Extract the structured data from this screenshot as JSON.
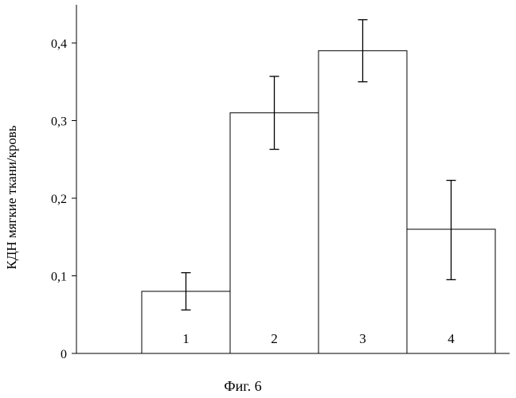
{
  "chart_data": {
    "type": "bar",
    "categories": [
      "1",
      "2",
      "3",
      "4"
    ],
    "values": [
      0.08,
      0.31,
      0.39,
      0.16
    ],
    "errors": [
      {
        "low": 0.056,
        "high": 0.104
      },
      {
        "low": 0.263,
        "high": 0.357
      },
      {
        "low": 0.35,
        "high": 0.43
      },
      {
        "low": 0.095,
        "high": 0.223
      }
    ],
    "ylabel": "КДН мягкие ткани/кровь",
    "ylim": [
      0,
      0.4
    ],
    "yticks": [
      0,
      0.1,
      0.2,
      0.3,
      0.4
    ],
    "ytick_labels": [
      "0",
      "0,1",
      "0,2",
      "0,3",
      "0,4"
    ],
    "grid": false,
    "bar_fill": "#ffffff",
    "line_color": "#000000"
  },
  "caption": "Фиг. 6"
}
